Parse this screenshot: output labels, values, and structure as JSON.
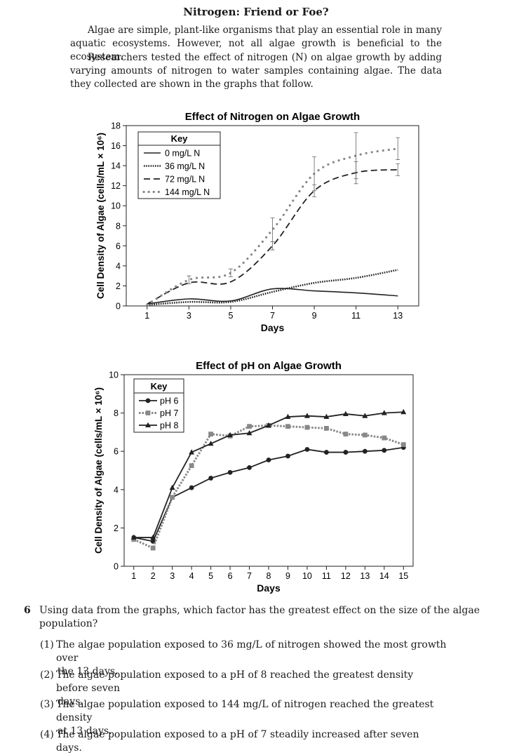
{
  "title": "Nitrogen: Friend or Foe?",
  "paragraphs": [
    "Algae are simple, plant-like organisms that play an essential role in many aquatic ecosystems. However, not all algae growth is beneficial to the ecosystem.",
    "Researchers tested the effect of nitrogen (N) on algae growth by adding varying amounts of nitrogen to water samples containing algae. The data they collected are shown in the graphs that follow."
  ],
  "chart_data": [
    {
      "type": "line",
      "title": "Effect of Nitrogen on Algae Growth",
      "xlabel": "Days",
      "ylabel": "Cell Density of Algae (cells/mL × 10⁶)",
      "xlim": [
        0,
        14
      ],
      "ylim": [
        0,
        18
      ],
      "xticks": [
        1,
        3,
        5,
        7,
        9,
        11,
        13
      ],
      "yticks": [
        0,
        2,
        4,
        6,
        8,
        10,
        12,
        14,
        16,
        18
      ],
      "legend_title": "Key",
      "legend_position": "top-left",
      "series": [
        {
          "name": "0 mg/L N",
          "style": "solid",
          "x": [
            1,
            3,
            5,
            7,
            9,
            11,
            13
          ],
          "y": [
            0.2,
            0.7,
            0.5,
            1.7,
            1.5,
            1.3,
            1.0
          ]
        },
        {
          "name": "36 mg/L N",
          "style": "dotted",
          "x": [
            1,
            3,
            5,
            7,
            9,
            11,
            13
          ],
          "y": [
            0.1,
            0.4,
            0.4,
            1.4,
            2.3,
            2.8,
            3.6
          ]
        },
        {
          "name": "72 mg/L N",
          "style": "dashed",
          "x": [
            1,
            3,
            5,
            7,
            9,
            11,
            13
          ],
          "y": [
            0.2,
            2.3,
            2.4,
            6.0,
            11.5,
            13.3,
            13.6
          ]
        },
        {
          "name": "144 mg/L N",
          "style": "gray-dots",
          "x": [
            1,
            3,
            5,
            7,
            9,
            11,
            13
          ],
          "y": [
            0.1,
            2.6,
            3.3,
            7.6,
            13.2,
            15.0,
            15.7
          ]
        }
      ]
    },
    {
      "type": "line",
      "title": "Effect of pH on Algae Growth",
      "xlabel": "Days",
      "ylabel": "Cell Density of Algae (cells/mL × 10⁶)",
      "xlim": [
        0.5,
        15.5
      ],
      "ylim": [
        0,
        10
      ],
      "xticks": [
        1,
        2,
        3,
        4,
        5,
        6,
        7,
        8,
        9,
        10,
        11,
        12,
        13,
        14,
        15
      ],
      "yticks": [
        0,
        2,
        4,
        6,
        8,
        10
      ],
      "legend_title": "Key",
      "legend_position": "top-left",
      "series": [
        {
          "name": "pH 6",
          "marker": "circle",
          "x": [
            1,
            2,
            3,
            4,
            5,
            6,
            7,
            8,
            9,
            10,
            11,
            12,
            13,
            14,
            15
          ],
          "y": [
            1.5,
            1.3,
            3.6,
            4.1,
            4.6,
            4.9,
            5.15,
            5.55,
            5.75,
            6.1,
            5.95,
            5.95,
            6.0,
            6.05,
            6.2
          ]
        },
        {
          "name": "pH 7",
          "marker": "square",
          "x": [
            1,
            2,
            3,
            4,
            5,
            6,
            7,
            8,
            9,
            10,
            11,
            12,
            13,
            14,
            15
          ],
          "y": [
            1.4,
            0.95,
            3.6,
            5.25,
            6.9,
            6.8,
            7.3,
            7.35,
            7.3,
            7.25,
            7.2,
            6.9,
            6.85,
            6.7,
            6.35
          ]
        },
        {
          "name": "pH 8",
          "marker": "triangle",
          "x": [
            1,
            2,
            3,
            4,
            5,
            6,
            7,
            8,
            9,
            10,
            11,
            12,
            13,
            14,
            15
          ],
          "y": [
            1.5,
            1.5,
            4.1,
            5.95,
            6.4,
            6.85,
            6.95,
            7.35,
            7.8,
            7.85,
            7.8,
            7.95,
            7.85,
            8.0,
            8.05
          ]
        }
      ]
    }
  ],
  "question": {
    "number": "6",
    "text": "Using data from the graphs, which factor has the greatest effect on the size of the algae population?",
    "options": [
      {
        "num": "(1)",
        "line1": "The algae population exposed to 36 mg/L of nitrogen showed the most growth over",
        "line2": "the 13 days."
      },
      {
        "num": "(2)",
        "line1": "The algae population exposed to a pH of 8 reached the greatest density before seven",
        "line2": "days."
      },
      {
        "num": "(3)",
        "line1": "The algae population exposed to 144 mg/L of nitrogen reached the greatest density",
        "line2": "at 13 days."
      },
      {
        "num": "(4)",
        "line1": "The algae population exposed to a pH of 7 steadily increased after seven days.",
        "line2": ""
      }
    ]
  }
}
